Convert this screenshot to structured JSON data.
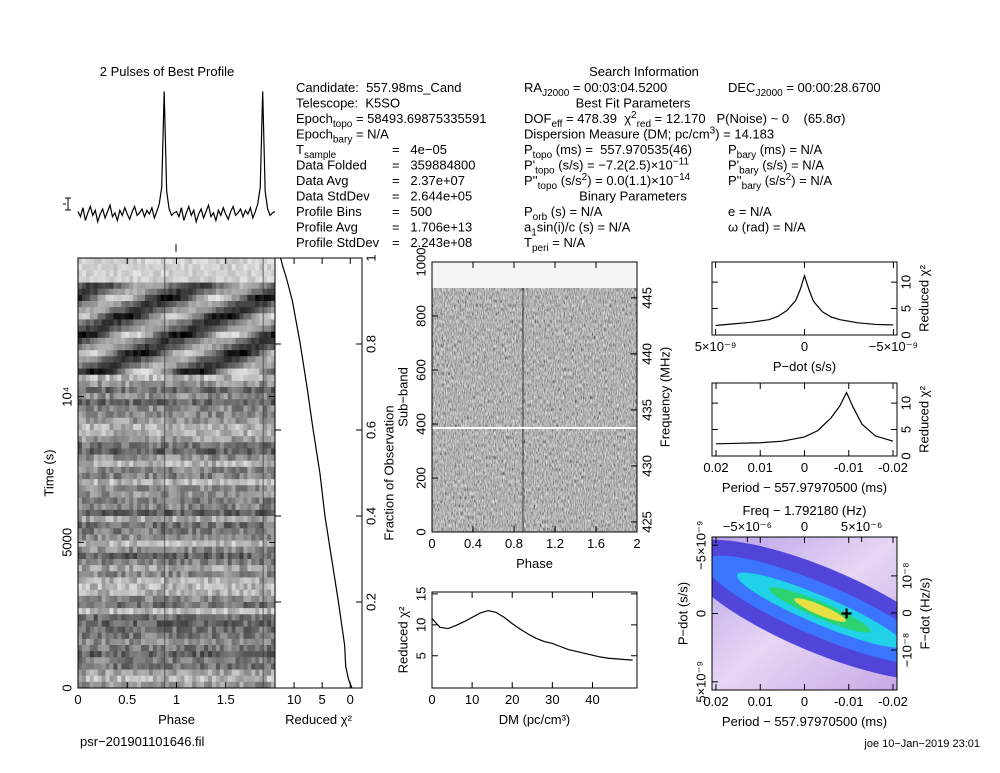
{
  "profile_title": "2 Pulses of Best Profile",
  "footer_left": "psr−201901101646.fil",
  "footer_right": "joe 10−Jan−2019 23:01",
  "info": {
    "title": "Search Information",
    "left_top": [
      [
        {
          "t": "Candidate:  557.98ms_Cand"
        }
      ],
      [
        {
          "t": "Telescope:  K5SO"
        }
      ],
      [
        {
          "t": "Epoch"
        },
        {
          "sub": "topo"
        },
        {
          "t": " = 58493.69875335591"
        }
      ],
      [
        {
          "t": "Epoch"
        },
        {
          "sub": "bary"
        },
        {
          "t": " = N/A"
        }
      ]
    ],
    "left_table": [
      {
        "label": [
          {
            "t": "T"
          },
          {
            "sub": "sample"
          }
        ],
        "value": "=   4e−05"
      },
      {
        "label": [
          {
            "t": "Data Folded"
          }
        ],
        "value": "=   359884800"
      },
      {
        "label": [
          {
            "t": "Data Avg"
          }
        ],
        "value": "=   2.37e+07"
      },
      {
        "label": [
          {
            "t": "Data StdDev"
          }
        ],
        "value": "=   2.644e+05"
      },
      {
        "label": [
          {
            "t": "Profile Bins"
          }
        ],
        "value": "=   500"
      },
      {
        "label": [
          {
            "t": "Profile Avg"
          }
        ],
        "value": "=   1.706e+13"
      },
      {
        "label": [
          {
            "t": "Profile StdDev"
          }
        ],
        "value": "=   2.243e+08"
      }
    ],
    "right": [
      {
        "left": [
          {
            "t": "RA"
          },
          {
            "sub": "J2000"
          },
          {
            "t": " = 00:03:04.5200"
          }
        ],
        "right": [
          {
            "t": "DEC"
          },
          {
            "sub": "J2000"
          },
          {
            "t": " = 00:00:28.6700"
          }
        ]
      },
      {
        "heading": "Best Fit Parameters"
      },
      {
        "left": [
          {
            "t": "DOF"
          },
          {
            "sub": "eff"
          },
          {
            "t": " = 478.39  χ"
          },
          {
            "sup": "2"
          },
          {
            "sub": "red"
          },
          {
            "t": " = 12.170   P(Noise) ~ 0    (65.8σ)"
          }
        ]
      },
      {
        "left": [
          {
            "t": "Dispersion Measure (DM; pc/cm"
          },
          {
            "sup": "3"
          },
          {
            "t": ") = 14.183"
          }
        ]
      },
      {
        "left": [
          {
            "t": "P"
          },
          {
            "sub": "topo"
          },
          {
            "t": " (ms) =  557.970535(46)"
          }
        ],
        "right": [
          {
            "t": "P"
          },
          {
            "sub": "bary"
          },
          {
            "t": " (ms) = N/A"
          }
        ]
      },
      {
        "left": [
          {
            "t": "P'"
          },
          {
            "sub": "topo"
          },
          {
            "t": " (s/s) = −7.2(2.5)×10"
          },
          {
            "sup": "−11"
          }
        ],
        "right": [
          {
            "t": "P'"
          },
          {
            "sub": "bary"
          },
          {
            "t": " (s/s) = N/A"
          }
        ]
      },
      {
        "left": [
          {
            "t": "P''"
          },
          {
            "sub": "topo"
          },
          {
            "t": " (s/s"
          },
          {
            "sup": "2"
          },
          {
            "t": ") = 0.0(1.1)×10"
          },
          {
            "sup": "−14"
          }
        ],
        "right": [
          {
            "t": "P''"
          },
          {
            "sub": "bary"
          },
          {
            "t": " (s/s"
          },
          {
            "sup": "2"
          },
          {
            "t": ") = N/A"
          }
        ]
      },
      {
        "heading": "Binary Parameters"
      },
      {
        "left": [
          {
            "t": "P"
          },
          {
            "sub": "orb"
          },
          {
            "t": " (s) = N/A"
          }
        ],
        "right": [
          {
            "t": "e = N/A"
          }
        ]
      },
      {
        "left": [
          {
            "t": "a"
          },
          {
            "sub": "1"
          },
          {
            "t": "sin(i)/c (s) = N/A"
          }
        ],
        "right": [
          {
            "t": "ω (rad) = N/A"
          }
        ]
      },
      {
        "left": [
          {
            "t": "T"
          },
          {
            "sub": "peri"
          },
          {
            "t": " = N/A"
          }
        ]
      }
    ]
  },
  "chart_data": [
    {
      "type": "line",
      "xlim": [
        0,
        2
      ],
      "ylim": [
        -0.1,
        1.05
      ],
      "x": [
        0,
        0.025,
        0.05,
        0.075,
        0.1,
        0.125,
        0.15,
        0.175,
        0.2,
        0.225,
        0.25,
        0.275,
        0.3,
        0.325,
        0.35,
        0.375,
        0.4,
        0.425,
        0.45,
        0.475,
        0.5,
        0.525,
        0.55,
        0.575,
        0.6,
        0.625,
        0.65,
        0.675,
        0.7,
        0.725,
        0.75,
        0.775,
        0.8,
        0.825,
        0.85,
        0.875,
        0.9,
        0.925,
        0.95,
        0.975,
        1,
        1.025,
        1.05,
        1.075,
        1.1,
        1.125,
        1.15,
        1.175,
        1.2,
        1.225,
        1.25,
        1.275,
        1.3,
        1.325,
        1.35,
        1.375,
        1.4,
        1.425,
        1.45,
        1.475,
        1.5,
        1.525,
        1.55,
        1.575,
        1.6,
        1.625,
        1.65,
        1.675,
        1.7,
        1.725,
        1.75,
        1.775,
        1.8,
        1.825,
        1.85,
        1.875,
        1.9,
        1.925,
        1.95,
        1.975,
        2
      ],
      "values": [
        0.06,
        0.02,
        0.09,
        -0.01,
        0.05,
        0.1,
        0.03,
        0.07,
        -0.02,
        0.04,
        0.08,
        0.01,
        0.06,
        0.11,
        0.02,
        0.05,
        -0.01,
        0.07,
        0.03,
        0.09,
        0.04,
        0.0,
        0.06,
        0.1,
        0.03,
        0.05,
        0.08,
        0.02,
        0.07,
        0.04,
        0.09,
        0.01,
        0.06,
        0.12,
        0.25,
        1.0,
        0.22,
        0.08,
        0.03,
        0.05,
        0.06,
        0.02,
        0.09,
        -0.01,
        0.05,
        0.1,
        0.03,
        0.07,
        -0.02,
        0.04,
        0.08,
        0.01,
        0.06,
        0.11,
        0.02,
        0.05,
        -0.01,
        0.07,
        0.03,
        0.09,
        0.04,
        0.0,
        0.06,
        0.1,
        0.03,
        0.05,
        0.08,
        0.02,
        0.07,
        0.04,
        0.09,
        0.01,
        0.06,
        0.12,
        0.25,
        1.0,
        0.22,
        0.08,
        0.03,
        0.05,
        0.06
      ]
    },
    {
      "type": "image",
      "frame": true,
      "xlim": [
        0,
        2
      ],
      "xticks": [
        0,
        0.5,
        1,
        1.5
      ],
      "ylim": [
        0,
        14760
      ],
      "yticks": [
        0,
        5000,
        {
          "value": 10000,
          "label": "10⁴"
        }
      ],
      "x_label": "Phase",
      "y_label": "Time (s)"
    },
    {
      "type": "line",
      "frame": true,
      "y_side": "right",
      "xlim": [
        13.4,
        -2.1
      ],
      "xticks": [
        10,
        5,
        0
      ],
      "ylim": [
        0,
        1
      ],
      "yticks": [
        0.2,
        0.4,
        0.6,
        0.8,
        1
      ],
      "x_label": "Reduced χ²",
      "y_label": "Fraction of Observation",
      "x": [
        -0.3,
        0.3,
        0.8,
        1.0,
        2.1,
        3.3,
        4.5,
        5.4,
        6.6,
        7.7,
        8.9,
        9.6,
        10.3,
        11.3,
        12.0,
        12.4
      ],
      "values": [
        0,
        0.02,
        0.05,
        0.1,
        0.2,
        0.3,
        0.4,
        0.5,
        0.6,
        0.7,
        0.8,
        0.85,
        0.9,
        0.95,
        0.98,
        1
      ]
    },
    {
      "type": "image",
      "frame": true,
      "xlim": [
        0,
        2
      ],
      "xticks": [
        0,
        0.4,
        0.8,
        1.2,
        1.6,
        2
      ],
      "ylim": [
        0,
        1000
      ],
      "yticks": [
        0,
        200,
        400,
        600,
        800,
        1000
      ],
      "y2lim": [
        424.1,
        448.2
      ],
      "y2ticks": [
        425,
        430,
        435,
        440,
        445
      ],
      "x_label": "Phase",
      "y_label": "Sub−band",
      "y2_label": "Frequency (MHz)"
    },
    {
      "type": "line",
      "frame": true,
      "xlim": [
        0,
        51.1
      ],
      "xticks": [
        0,
        10,
        20,
        30,
        40
      ],
      "ylim": [
        -0.2,
        15.3
      ],
      "yticks": [
        5,
        10,
        15
      ],
      "x_label": "DM (pc/cm³)",
      "y_label": "Reduced χ²",
      "x": [
        0,
        2,
        4,
        6,
        8,
        10,
        12,
        14,
        16,
        18,
        20,
        22,
        24,
        26,
        28,
        30,
        32,
        34,
        36,
        38,
        40,
        42,
        44,
        46,
        48,
        50
      ],
      "values": [
        11.0,
        9.6,
        9.4,
        9.9,
        10.5,
        11.2,
        11.9,
        12.3,
        12.0,
        11.2,
        10.2,
        9.3,
        8.5,
        7.8,
        7.3,
        7.0,
        6.5,
        6.0,
        5.7,
        5.4,
        5.1,
        4.8,
        4.6,
        4.5,
        4.4,
        4.3
      ]
    },
    {
      "type": "line",
      "frame": true,
      "y_side": "right",
      "xlim": [
        5.2e-09,
        -5.2e-09
      ],
      "xticks": [
        {
          "value": 5e-09,
          "label": "5×10⁻⁹"
        },
        0,
        {
          "value": -5e-09,
          "label": "−5×10⁻⁹"
        }
      ],
      "ylim": [
        0,
        13.8
      ],
      "yticks": [
        0,
        5,
        10
      ],
      "x_label": "P−dot (s/s)",
      "y_label": "Reduced χ²",
      "x": [
        5e-09,
        4e-09,
        3e-09,
        2e-09,
        1.5e-09,
        1e-09,
        5e-10,
        2.5e-10,
        0,
        -2.5e-10,
        -5e-10,
        -1e-09,
        -1.5e-09,
        -2e-09,
        -3e-09,
        -4e-09,
        -5e-09
      ],
      "values": [
        1.8,
        2.1,
        2.4,
        2.9,
        3.5,
        4.6,
        6.5,
        8.5,
        11.2,
        8.6,
        6.4,
        4.4,
        3.4,
        2.9,
        2.3,
        2.0,
        1.9
      ]
    },
    {
      "type": "line",
      "frame": true,
      "y_side": "right",
      "xlim": [
        0.0209,
        -0.0209
      ],
      "xticks": [
        0.02,
        0.01,
        0,
        -0.01,
        -0.02
      ],
      "ylim": [
        0,
        13.8
      ],
      "yticks": [
        0,
        5,
        10
      ],
      "x_label": "Period − 557.97970500 (ms)",
      "y_label": "Reduced χ²",
      "x": [
        0.02,
        0.015,
        0.01,
        0.005,
        0,
        -0.003,
        -0.006,
        -0.008,
        -0.0095,
        -0.011,
        -0.013,
        -0.016,
        -0.02
      ],
      "values": [
        2.3,
        2.4,
        2.5,
        2.8,
        3.6,
        4.8,
        7.2,
        9.5,
        12.0,
        9.2,
        6.0,
        3.8,
        2.8
      ]
    },
    {
      "type": "image",
      "frame": true,
      "xlim": [
        0.0209,
        -0.0209
      ],
      "xticks": [
        0.02,
        0.01,
        0,
        -0.01,
        -0.02
      ],
      "ylim": [
        5.6e-09,
        -5.6e-09
      ],
      "yticks": [
        {
          "value": -5e-09,
          "label": "−5×10⁻⁹"
        },
        0,
        {
          "value": 5e-09,
          "label": "5×10⁻⁹"
        }
      ],
      "x2lim": [
        -8.1e-06,
        8.1e-06
      ],
      "x2ticks": [
        {
          "value": -5e-06,
          "label": "−5×10⁻⁶"
        },
        0,
        {
          "value": 5e-06,
          "label": "5×10⁻⁶"
        }
      ],
      "y2lim": [
        -2.08e-08,
        2.05e-08
      ],
      "y2ticks": [
        {
          "value": 1e-08,
          "label": "10⁻⁸"
        },
        0,
        {
          "value": -1e-08,
          "label": "−10⁻⁸"
        }
      ],
      "x_label": "Period − 557.97970500 (ms)",
      "x2_label": "Freq − 1.792180 (Hz)",
      "y_label": "P−dot (s/s)",
      "y2_label": "F−dot (Hz/s)",
      "best": {
        "x": -0.0095,
        "y": 0
      }
    }
  ]
}
